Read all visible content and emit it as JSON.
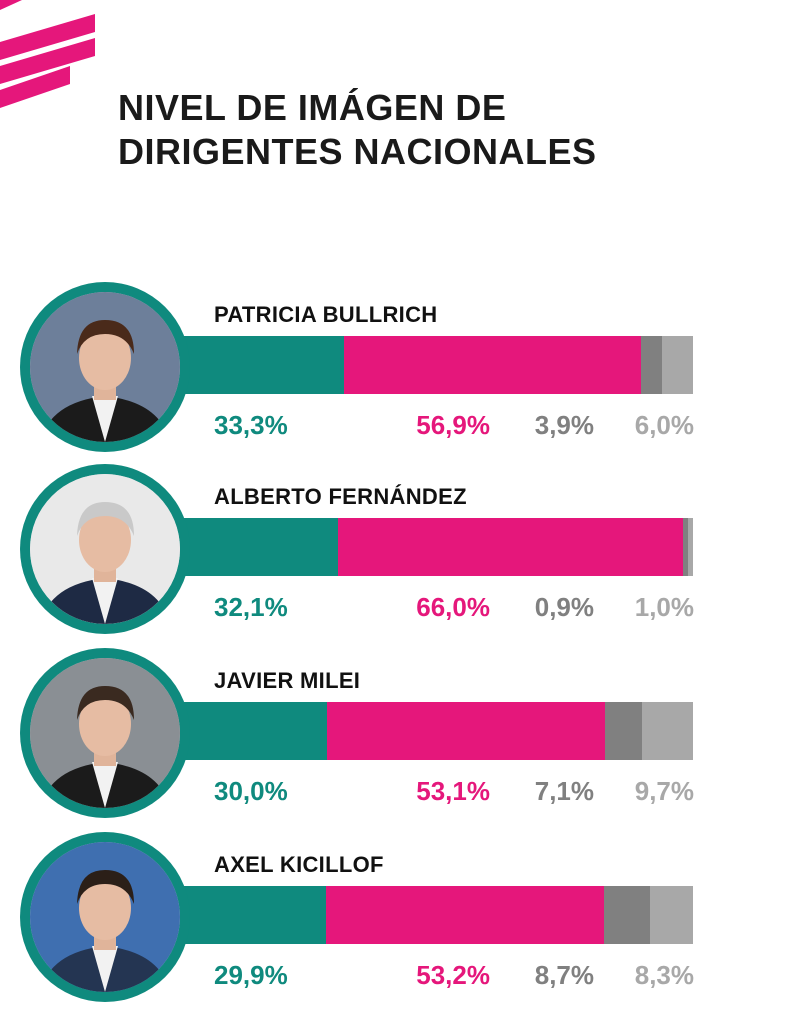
{
  "title_line1": "NIVEL DE IMÁGEN DE",
  "title_line2": "DIRIGENTES NACIONALES",
  "colors": {
    "positive": "#0f8a7e",
    "negative": "#e5177b",
    "dark_gray": "#808080",
    "light_gray": "#a8a8a8",
    "brand_logo": "#e5177b"
  },
  "chart_data": {
    "type": "bar",
    "orientation": "horizontal-stacked-100",
    "categories": [
      "PATRICIA BULLRICH",
      "ALBERTO FERNÁNDEZ",
      "JAVIER MILEI",
      "AXEL KICILLOF"
    ],
    "series": [
      {
        "values": [
          33.3,
          32.1,
          30.0,
          29.9
        ]
      },
      {
        "values": [
          56.9,
          66.0,
          53.1,
          53.2
        ]
      },
      {
        "values": [
          3.9,
          0.9,
          7.1,
          8.7
        ]
      },
      {
        "values": [
          6.0,
          1.0,
          9.7,
          8.3
        ]
      }
    ],
    "labels": [
      [
        "33,3%",
        "56,9%",
        "3,9%",
        "6,0%"
      ],
      [
        "32,1%",
        "66,0%",
        "0,9%",
        "1,0%"
      ],
      [
        "30,0%",
        "53,1%",
        "7,1%",
        "9,7%"
      ],
      [
        "29,9%",
        "53,2%",
        "8,7%",
        "8,3%"
      ]
    ]
  }
}
